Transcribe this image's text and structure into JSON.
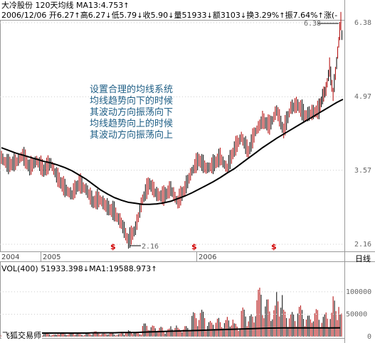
{
  "header": {
    "name": "大冷股份",
    "ma_label": "120天均线",
    "ma13": "MA13:4.753",
    "date": "2006/12/06",
    "open": "开6.27",
    "high": "高6.27",
    "low": "低5.79",
    "close": "收5.90",
    "volume": "量51933",
    "amount": "额3103",
    "turnover": "换3.29%",
    "amplitude": "振7.64%",
    "change": "涨(-"
  },
  "annotation": {
    "lines": [
      "设置合理的均线系统",
      "均线趋势向下的时候",
      "其波动方向振荡向下",
      "均线趋势向上的时候",
      "其波动方向振荡向上"
    ]
  },
  "price_labels": {
    "high": "6.38",
    "low": "2.16"
  },
  "volume_header": {
    "label": "VOL(400)",
    "value": "51933.398",
    "ma1": "MA1:19588.973"
  },
  "timeline": {
    "years": [
      "2004",
      "2005",
      "2006"
    ],
    "period": "日线"
  },
  "marks": [
    "$",
    "$",
    "$"
  ],
  "watermark": "飞狐交易师",
  "colors": {
    "up": "#b00000",
    "down": "#000000",
    "ma": "#000000",
    "grid": "#cccccc",
    "note": "#1f5f86",
    "mark": "#d00000"
  },
  "chart_data": [
    {
      "type": "line",
      "title": "大冷股份 120天均线",
      "xlabel": "",
      "ylabel": "",
      "y_ticks": [
        "6.38",
        "4.97",
        "3.57",
        "2.16"
      ],
      "ylim": [
        2.16,
        6.38
      ],
      "x": [
        0,
        10,
        20,
        30,
        40,
        50,
        60,
        70,
        80,
        90,
        100,
        110,
        120,
        130,
        140,
        150,
        160,
        170,
        180,
        190,
        200,
        210,
        220,
        230,
        240,
        250,
        260,
        270,
        280,
        290,
        300,
        310,
        320,
        330,
        340,
        350,
        360,
        370,
        380,
        390,
        400,
        410,
        420,
        430,
        440,
        450,
        455,
        460,
        465,
        470,
        475,
        478,
        481,
        484
      ],
      "series": [
        {
          "name": "price",
          "values": [
            3.8,
            3.65,
            3.7,
            3.85,
            3.6,
            3.75,
            3.55,
            3.7,
            3.4,
            3.2,
            3.1,
            3.3,
            3.2,
            2.95,
            3.0,
            2.85,
            2.75,
            2.55,
            2.2,
            2.45,
            3.0,
            3.3,
            3.1,
            3.05,
            3.2,
            2.95,
            3.2,
            3.55,
            3.75,
            3.6,
            3.65,
            3.8,
            3.6,
            3.95,
            4.2,
            3.9,
            4.3,
            4.5,
            4.4,
            4.7,
            4.3,
            4.75,
            4.8,
            4.6,
            4.65,
            4.7,
            4.95,
            5.1,
            5.5,
            5.0,
            5.6,
            6.0,
            6.38,
            5.9
          ]
        },
        {
          "name": "MA120",
          "values": [
            4.0,
            3.95,
            3.9,
            3.86,
            3.82,
            3.78,
            3.74,
            3.71,
            3.67,
            3.62,
            3.56,
            3.48,
            3.4,
            3.3,
            3.2,
            3.12,
            3.05,
            3.0,
            2.96,
            2.94,
            2.92,
            2.92,
            2.93,
            2.95,
            2.98,
            3.03,
            3.08,
            3.14,
            3.21,
            3.28,
            3.35,
            3.43,
            3.52,
            3.6,
            3.7,
            3.8,
            3.9,
            4.0,
            4.09,
            4.18,
            4.26,
            4.34,
            4.42,
            4.5,
            4.58,
            4.66,
            4.7,
            4.74,
            4.78,
            4.82,
            4.86,
            4.88,
            4.9,
            4.92
          ]
        }
      ]
    },
    {
      "type": "bar",
      "title": "VOL(400)",
      "y_ticks": [
        "100000",
        "50000",
        "0"
      ],
      "ylim": [
        0,
        130000
      ],
      "x": [
        0,
        10,
        20,
        30,
        40,
        50,
        60,
        70,
        80,
        90,
        100,
        110,
        120,
        130,
        140,
        150,
        160,
        170,
        180,
        190,
        200,
        210,
        220,
        230,
        240,
        250,
        260,
        270,
        280,
        290,
        300,
        310,
        320,
        330,
        340,
        350,
        360,
        370,
        380,
        390,
        400,
        410,
        420,
        430,
        440,
        450,
        460,
        470,
        480
      ],
      "values": [
        8000,
        6000,
        7000,
        5000,
        9000,
        6000,
        8000,
        5000,
        10000,
        7000,
        9000,
        6000,
        8000,
        12000,
        7000,
        9000,
        6000,
        11000,
        14000,
        9000,
        30000,
        25000,
        22000,
        18000,
        26000,
        20000,
        24000,
        55000,
        60000,
        35000,
        42000,
        38000,
        45000,
        30000,
        65000,
        50000,
        110000,
        85000,
        70000,
        105000,
        60000,
        55000,
        70000,
        48000,
        62000,
        50000,
        58000,
        90000,
        51933
      ],
      "series": [
        {
          "name": "MA1",
          "values": [
            8000,
            8000,
            8000,
            8000,
            8000,
            8000,
            8000,
            8000,
            8000,
            8000,
            8000,
            8000,
            8000,
            8500,
            8500,
            8500,
            8500,
            9000,
            9000,
            9000,
            10000,
            10500,
            11000,
            11500,
            12000,
            12500,
            13000,
            13500,
            14000,
            14500,
            15000,
            15500,
            16000,
            16500,
            17000,
            17500,
            18000,
            18500,
            19000,
            19200,
            19300,
            19400,
            19450,
            19500,
            19520,
            19540,
            19560,
            19575,
            19589
          ]
        }
      ]
    }
  ]
}
